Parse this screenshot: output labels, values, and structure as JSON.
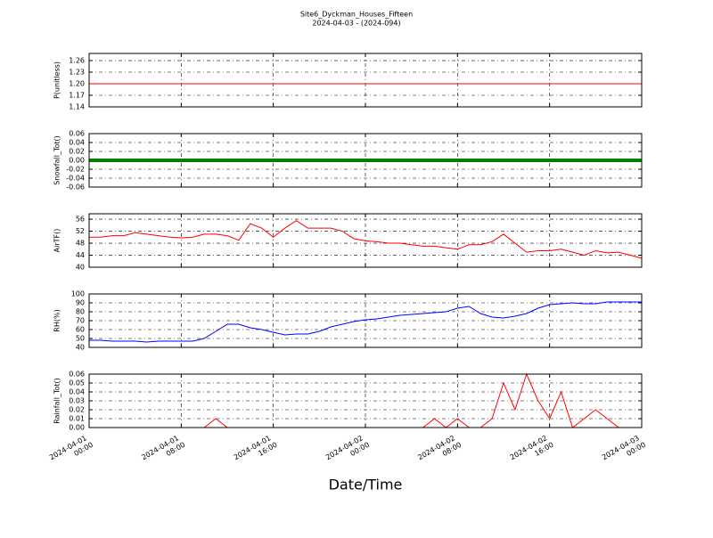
{
  "figure": {
    "title": "Site6_Dyckman_Houses_Fifteen",
    "subtitle": "2024-04-03 - (2024-094)",
    "xlabel": "Date/Time"
  },
  "chart_data": [
    {
      "type": "line",
      "ylabel": "P(unitless)",
      "color": "#ff0000",
      "linewidth": 1,
      "grid": true,
      "show_xtick_labels": false,
      "ylim": [
        1.14,
        1.2785
      ],
      "yticks": [
        {
          "value": 1.14,
          "label": "1.14"
        },
        {
          "value": 1.17,
          "label": "1.17"
        },
        {
          "value": 1.2,
          "label": "1.20"
        },
        {
          "value": 1.23,
          "label": "1.23"
        },
        {
          "value": 1.26,
          "label": "1.26"
        }
      ],
      "xlim": [
        "2024-04-01 00:00",
        "2024-04-03 00:00"
      ],
      "xticks": [
        "2024-04-01 00:00",
        "2024-04-01 08:00",
        "2024-04-01 16:00",
        "2024-04-02 00:00",
        "2024-04-02 08:00",
        "2024-04-02 16:00",
        "2024-04-03 00:00"
      ],
      "x": [
        "2024-04-01 00:00",
        "2024-04-01 12:00",
        "2024-04-02 00:00",
        "2024-04-02 12:00",
        "2024-04-03 00:00"
      ],
      "values": [
        1.2,
        1.2,
        1.2,
        1.2,
        1.2
      ]
    },
    {
      "type": "line",
      "ylabel": "Snowfall_Tot()",
      "color": "#008000",
      "linewidth": 4,
      "grid": true,
      "show_xtick_labels": false,
      "ylim": [
        -0.06,
        0.06
      ],
      "yticks": [
        -0.06,
        -0.04,
        -0.02,
        {
          "value": 0,
          "label": "0.00"
        },
        0.02,
        0.04,
        0.06
      ],
      "xlim": [
        "2024-04-01 00:00",
        "2024-04-03 00:00"
      ],
      "xticks": [
        "2024-04-01 00:00",
        "2024-04-01 08:00",
        "2024-04-01 16:00",
        "2024-04-02 00:00",
        "2024-04-02 08:00",
        "2024-04-02 16:00",
        "2024-04-03 00:00"
      ],
      "x": [
        "2024-04-01 00:00",
        "2024-04-01 12:00",
        "2024-04-02 00:00",
        "2024-04-02 12:00",
        "2024-04-03 00:00"
      ],
      "values": [
        0,
        0,
        0,
        0,
        0
      ]
    },
    {
      "type": "line",
      "ylabel": "AirTF()",
      "color": "#ff0000",
      "linewidth": 1,
      "grid": true,
      "show_xtick_labels": false,
      "ylim": [
        40,
        57.8
      ],
      "yticks": [
        40,
        44,
        48,
        52,
        56
      ],
      "xlim": [
        "2024-04-01 00:00",
        "2024-04-03 00:00"
      ],
      "xticks": [
        "2024-04-01 00:00",
        "2024-04-01 08:00",
        "2024-04-01 16:00",
        "2024-04-02 00:00",
        "2024-04-02 08:00",
        "2024-04-02 16:00",
        "2024-04-03 00:00"
      ],
      "x": [
        "2024-04-01 00:00",
        "2024-04-01 01:00",
        "2024-04-01 02:00",
        "2024-04-01 03:00",
        "2024-04-01 04:00",
        "2024-04-01 05:00",
        "2024-04-01 06:00",
        "2024-04-01 07:00",
        "2024-04-01 08:00",
        "2024-04-01 09:00",
        "2024-04-01 10:00",
        "2024-04-01 11:00",
        "2024-04-01 12:00",
        "2024-04-01 13:00",
        "2024-04-01 14:00",
        "2024-04-01 15:00",
        "2024-04-01 16:00",
        "2024-04-01 17:00",
        "2024-04-01 18:00",
        "2024-04-01 19:00",
        "2024-04-01 20:00",
        "2024-04-01 21:00",
        "2024-04-01 22:00",
        "2024-04-01 23:00",
        "2024-04-02 00:00",
        "2024-04-02 01:00",
        "2024-04-02 02:00",
        "2024-04-02 03:00",
        "2024-04-02 04:00",
        "2024-04-02 05:00",
        "2024-04-02 06:00",
        "2024-04-02 07:00",
        "2024-04-02 08:00",
        "2024-04-02 09:00",
        "2024-04-02 10:00",
        "2024-04-02 11:00",
        "2024-04-02 12:00",
        "2024-04-02 13:00",
        "2024-04-02 14:00",
        "2024-04-02 15:00",
        "2024-04-02 16:00",
        "2024-04-02 17:00",
        "2024-04-02 18:00",
        "2024-04-02 19:00",
        "2024-04-02 20:00",
        "2024-04-02 21:00",
        "2024-04-02 22:00",
        "2024-04-02 23:00",
        "2024-04-03 00:00"
      ],
      "values": [
        50,
        50,
        50.5,
        50.5,
        51.5,
        51,
        50.5,
        50,
        49.8,
        50,
        51,
        51,
        50.5,
        49,
        54.5,
        53,
        50,
        53,
        55.5,
        53,
        53,
        53,
        52,
        49.5,
        48.8,
        48.5,
        48,
        48,
        47.5,
        47,
        47,
        46.5,
        46,
        47.5,
        47.5,
        48.5,
        51,
        48,
        45,
        45.5,
        45.5,
        46,
        45,
        44,
        45.5,
        44.8,
        45,
        44,
        43
      ]
    },
    {
      "type": "line",
      "ylabel": "RH(%)",
      "color": "#0000ff",
      "linewidth": 1,
      "grid": true,
      "show_xtick_labels": false,
      "ylim": [
        40,
        100
      ],
      "yticks": [
        40,
        50,
        60,
        70,
        80,
        90,
        100
      ],
      "xlim": [
        "2024-04-01 00:00",
        "2024-04-03 00:00"
      ],
      "xticks": [
        "2024-04-01 00:00",
        "2024-04-01 08:00",
        "2024-04-01 16:00",
        "2024-04-02 00:00",
        "2024-04-02 08:00",
        "2024-04-02 16:00",
        "2024-04-03 00:00"
      ],
      "x": [
        "2024-04-01 00:00",
        "2024-04-01 01:00",
        "2024-04-01 02:00",
        "2024-04-01 03:00",
        "2024-04-01 04:00",
        "2024-04-01 05:00",
        "2024-04-01 06:00",
        "2024-04-01 07:00",
        "2024-04-01 08:00",
        "2024-04-01 09:00",
        "2024-04-01 10:00",
        "2024-04-01 11:00",
        "2024-04-01 12:00",
        "2024-04-01 13:00",
        "2024-04-01 14:00",
        "2024-04-01 15:00",
        "2024-04-01 16:00",
        "2024-04-01 17:00",
        "2024-04-01 18:00",
        "2024-04-01 19:00",
        "2024-04-01 20:00",
        "2024-04-01 21:00",
        "2024-04-01 22:00",
        "2024-04-01 23:00",
        "2024-04-02 00:00",
        "2024-04-02 01:00",
        "2024-04-02 02:00",
        "2024-04-02 03:00",
        "2024-04-02 04:00",
        "2024-04-02 05:00",
        "2024-04-02 06:00",
        "2024-04-02 07:00",
        "2024-04-02 08:00",
        "2024-04-02 09:00",
        "2024-04-02 10:00",
        "2024-04-02 11:00",
        "2024-04-02 12:00",
        "2024-04-02 13:00",
        "2024-04-02 14:00",
        "2024-04-02 15:00",
        "2024-04-02 16:00",
        "2024-04-02 17:00",
        "2024-04-02 18:00",
        "2024-04-02 19:00",
        "2024-04-02 20:00",
        "2024-04-02 21:00",
        "2024-04-02 22:00",
        "2024-04-02 23:00",
        "2024-04-03 00:00"
      ],
      "values": [
        48,
        48,
        47,
        47,
        47,
        46,
        47,
        47,
        47,
        47,
        50,
        58,
        66,
        66,
        62,
        60,
        57,
        54,
        55,
        55,
        58,
        63,
        66,
        69,
        71,
        72,
        74,
        76,
        77,
        78,
        79,
        80,
        84,
        86,
        78,
        74,
        73,
        75,
        78,
        84,
        88,
        89,
        90,
        89,
        89,
        91,
        91,
        91,
        91
      ]
    },
    {
      "type": "line",
      "ylabel": "Rainfall_Tot()",
      "color": "#ff0000",
      "linewidth": 1,
      "grid": true,
      "show_xtick_labels": true,
      "ylim": [
        0,
        0.06
      ],
      "yticks": [
        {
          "value": 0,
          "label": "0.00"
        },
        0.01,
        0.02,
        0.03,
        0.04,
        0.05,
        0.06
      ],
      "xlim": [
        "2024-04-01 00:00",
        "2024-04-03 00:00"
      ],
      "xticks": [
        "2024-04-01 00:00",
        "2024-04-01 08:00",
        "2024-04-01 16:00",
        "2024-04-02 00:00",
        "2024-04-02 08:00",
        "2024-04-02 16:00",
        "2024-04-03 00:00"
      ],
      "x": [
        "2024-04-01 00:00",
        "2024-04-01 01:00",
        "2024-04-01 02:00",
        "2024-04-01 03:00",
        "2024-04-01 04:00",
        "2024-04-01 05:00",
        "2024-04-01 06:00",
        "2024-04-01 07:00",
        "2024-04-01 08:00",
        "2024-04-01 09:00",
        "2024-04-01 10:00",
        "2024-04-01 11:00",
        "2024-04-01 12:00",
        "2024-04-01 13:00",
        "2024-04-01 14:00",
        "2024-04-01 15:00",
        "2024-04-01 16:00",
        "2024-04-01 17:00",
        "2024-04-01 18:00",
        "2024-04-01 19:00",
        "2024-04-01 20:00",
        "2024-04-01 21:00",
        "2024-04-01 22:00",
        "2024-04-01 23:00",
        "2024-04-02 00:00",
        "2024-04-02 01:00",
        "2024-04-02 02:00",
        "2024-04-02 03:00",
        "2024-04-02 04:00",
        "2024-04-02 05:00",
        "2024-04-02 06:00",
        "2024-04-02 07:00",
        "2024-04-02 08:00",
        "2024-04-02 09:00",
        "2024-04-02 10:00",
        "2024-04-02 11:00",
        "2024-04-02 12:00",
        "2024-04-02 13:00",
        "2024-04-02 14:00",
        "2024-04-02 15:00",
        "2024-04-02 16:00",
        "2024-04-02 17:00",
        "2024-04-02 18:00",
        "2024-04-02 19:00",
        "2024-04-02 20:00",
        "2024-04-02 21:00",
        "2024-04-02 22:00",
        "2024-04-02 23:00",
        "2024-04-03 00:00"
      ],
      "values": [
        0,
        0,
        0,
        0,
        0,
        0,
        0,
        0,
        0,
        0,
        0,
        0.01,
        0,
        0,
        0,
        0,
        0,
        0,
        0,
        0,
        0,
        0,
        0,
        0,
        0,
        0,
        0,
        0,
        0,
        0,
        0.01,
        0,
        0.01,
        0,
        0,
        0.01,
        0.05,
        0.02,
        0.06,
        0.03,
        0.01,
        0.04,
        0,
        0.01,
        0.02,
        0.01,
        0,
        0,
        0
      ]
    }
  ]
}
